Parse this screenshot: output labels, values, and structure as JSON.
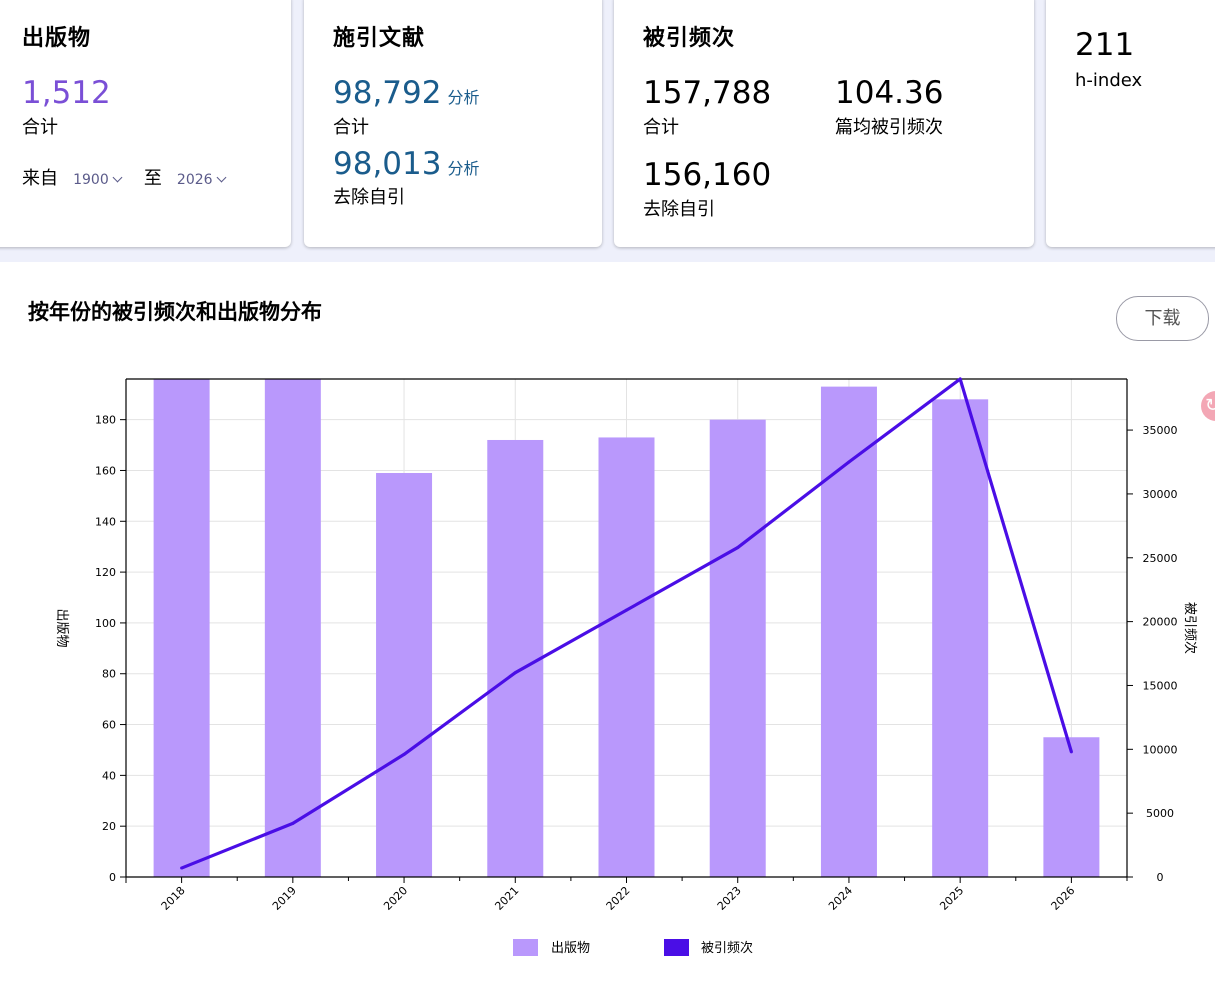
{
  "cards": {
    "publications": {
      "title": "出版物",
      "total": "1,512",
      "total_label": "合计",
      "from_label": "来自",
      "from_value": "1900",
      "to_label": "至",
      "to_value": "2026"
    },
    "citing": {
      "title": "施引文献",
      "total": "98,792",
      "total_link": "分析",
      "total_label": "合计",
      "excl": "98,013",
      "excl_link": "分析",
      "excl_label": "去除自引"
    },
    "cited": {
      "title": "被引频次",
      "total": "157,788",
      "total_label": "合计",
      "avg": "104.36",
      "avg_label": "篇均被引频次",
      "excl": "156,160",
      "excl_label": "去除自引"
    },
    "hindex": {
      "value": "211",
      "label": "h-index"
    }
  },
  "section": {
    "title": "按年份的被引频次和出版物分布",
    "download": "下载"
  },
  "colors": {
    "bar": "#b998fc",
    "line": "#4a0ee6",
    "accent_purple": "#7a4fd6",
    "link_blue": "#1a5c8c"
  },
  "chart_data": {
    "type": "bar",
    "categories": [
      "2018",
      "2019",
      "2020",
      "2021",
      "2022",
      "2023",
      "2024",
      "2025",
      "2026"
    ],
    "series": [
      {
        "name": "出版物",
        "type": "bar",
        "axis": "left",
        "values": [
          196,
          196,
          159,
          172,
          173,
          180,
          193,
          188,
          55
        ]
      },
      {
        "name": "被引频次",
        "type": "line",
        "axis": "right",
        "values": [
          700,
          4200,
          9600,
          16000,
          20900,
          25800,
          32500,
          39000,
          9800
        ]
      }
    ],
    "ylabel": "出版物",
    "y2label": "被引频次",
    "ylim": [
      0,
      196
    ],
    "y2lim": [
      0,
      39000
    ],
    "yticks": [
      0,
      20,
      40,
      60,
      80,
      100,
      120,
      140,
      160,
      180
    ],
    "y2ticks": [
      0,
      5000,
      10000,
      15000,
      20000,
      25000,
      30000,
      35000
    ],
    "grid": true,
    "legend": "bottom"
  }
}
